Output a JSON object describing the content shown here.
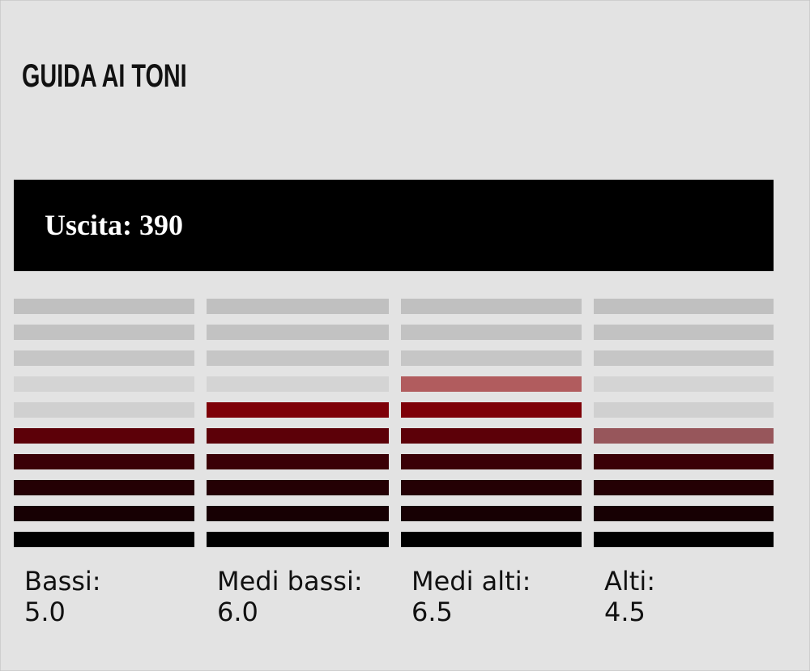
{
  "chart_data": {
    "type": "meter",
    "title": "GUIDA AI TONI",
    "subtitle": "Uscita: 390",
    "categories": [
      "Bassi:",
      "Medi bassi:",
      "Medi alti:",
      "Alti:"
    ],
    "values": [
      5,
      6,
      6.5,
      4.5
    ],
    "value_labels": [
      "5.0",
      "6.0",
      "6.5",
      "4.5"
    ],
    "ylim": [
      0,
      10
    ],
    "colors": [
      "#000000",
      "#170003",
      "#240004",
      "#3a0006",
      "#5c0008",
      "#7e0008",
      "#8a0a0e",
      "#96141a",
      "#a01e24",
      "#aa2a30"
    ],
    "empty_colors": [
      "#c4c4c4",
      "#c4c4c4",
      "#c6c6c6",
      "#c9c9c9",
      "#cccccc",
      "#d0d0d0",
      "#d4d4d4",
      "#c6c6c6",
      "#c2c2c2",
      "#c0c0c0"
    ]
  }
}
